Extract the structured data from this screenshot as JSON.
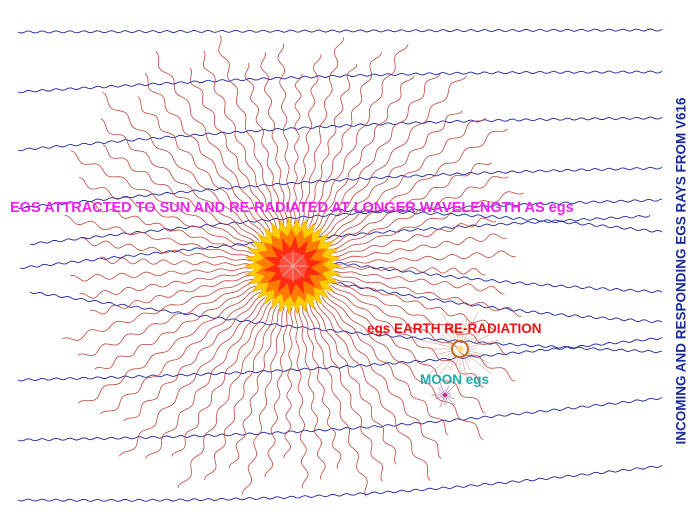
{
  "labels": {
    "sun_caption": "EGS ATTRACTED TO SUN AND RE-RADIATED AT LONGER WAVELENGTH AS egs",
    "earth_caption": "egs EARTH RE-RADIATION",
    "moon_caption": "MOON egs",
    "side_title": "INCOMING AND RESPONDING EGS RAYS FROM V616"
  },
  "colors": {
    "incoming_rays": "#1f2a9e",
    "sun_rays": "#b8352a",
    "sun_core": "#ff2a10",
    "sun_mid": "#ff7a00",
    "sun_corona": "#ffcc00",
    "sun_caption": "#ee22ee",
    "earth_caption": "#ee1111",
    "moon_caption": "#22aaaa",
    "side_title": "#1a2c9c",
    "earth_ring": "#c86a1e"
  },
  "sun": {
    "ray_count": 72
  },
  "incoming": {
    "line_count": 13
  }
}
